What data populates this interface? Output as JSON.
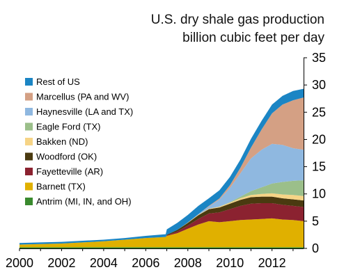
{
  "chart_data": {
    "type": "area",
    "stacked": true,
    "title": "U.S. dry shale gas production",
    "subtitle": "billion cubic feet per day",
    "xlabel": "",
    "ylabel": "",
    "xlim": [
      2000,
      2013.5
    ],
    "ylim": [
      0,
      35
    ],
    "y_axis_side": "right",
    "x_ticks": [
      2000,
      2002,
      2004,
      2006,
      2008,
      2010,
      2012
    ],
    "y_ticks": [
      0,
      5,
      10,
      15,
      20,
      25,
      30,
      35
    ],
    "grid": false,
    "legend_position": "left",
    "x": [
      2000,
      2001,
      2002,
      2003,
      2004,
      2005,
      2006,
      2006.95,
      2007,
      2007.5,
      2008,
      2008.5,
      2009,
      2009.5,
      2010,
      2010.5,
      2011,
      2011.5,
      2012,
      2012.5,
      2013,
      2013.5
    ],
    "series": [
      {
        "name": "Antrim (MI, IN, and OH)",
        "color": "#3a8a2e",
        "values": [
          0.2,
          0.2,
          0.2,
          0.2,
          0.2,
          0.2,
          0.2,
          0.2,
          0.2,
          0.2,
          0.2,
          0.2,
          0.2,
          0.2,
          0.2,
          0.2,
          0.2,
          0.2,
          0.2,
          0.2,
          0.2,
          0.2
        ]
      },
      {
        "name": "Barnett (TX)",
        "color": "#e0b000",
        "values": [
          0.5,
          0.6,
          0.7,
          0.9,
          1.1,
          1.4,
          1.7,
          1.9,
          2.1,
          2.6,
          3.4,
          4.2,
          4.8,
          4.6,
          4.8,
          5.0,
          5.1,
          5.2,
          5.3,
          5.1,
          5.0,
          4.8
        ]
      },
      {
        "name": "Fayetteville (AR)",
        "color": "#8b2230",
        "values": [
          0,
          0,
          0,
          0,
          0,
          0,
          0,
          0,
          0.1,
          0.3,
          0.6,
          1.0,
          1.4,
          1.8,
          2.2,
          2.6,
          2.9,
          2.9,
          2.8,
          2.7,
          2.6,
          2.6
        ]
      },
      {
        "name": "Woodford (OK)",
        "color": "#4a3a10",
        "values": [
          0,
          0,
          0,
          0,
          0,
          0,
          0,
          0,
          0.1,
          0.3,
          0.5,
          0.7,
          0.8,
          0.9,
          1.0,
          1.1,
          1.2,
          1.2,
          1.2,
          1.2,
          1.2,
          1.2
        ]
      },
      {
        "name": "Bakken (ND)",
        "color": "#f6d486",
        "values": [
          0,
          0,
          0,
          0,
          0,
          0,
          0,
          0,
          0,
          0,
          0.05,
          0.1,
          0.1,
          0.15,
          0.2,
          0.3,
          0.4,
          0.5,
          0.6,
          0.7,
          0.8,
          0.8
        ]
      },
      {
        "name": "Eagle Ford (TX)",
        "color": "#9bbf8a",
        "values": [
          0,
          0,
          0,
          0,
          0,
          0,
          0,
          0,
          0,
          0,
          0,
          0,
          0,
          0.02,
          0.1,
          0.3,
          0.7,
          1.2,
          1.8,
          2.3,
          2.6,
          2.9
        ]
      },
      {
        "name": "Haynesville (LA and TX)",
        "color": "#8fb8e0",
        "values": [
          0,
          0,
          0,
          0,
          0,
          0,
          0,
          0,
          0,
          0,
          0,
          0.1,
          0.4,
          1.3,
          2.6,
          4.3,
          6.0,
          6.9,
          7.3,
          6.8,
          6.0,
          5.6
        ]
      },
      {
        "name": "Marcellus (PA and WV)",
        "color": "#d4a084",
        "values": [
          0,
          0,
          0,
          0,
          0,
          0,
          0,
          0,
          0,
          0,
          0,
          0,
          0.1,
          0.2,
          0.5,
          1.0,
          2.0,
          3.7,
          5.6,
          7.4,
          8.8,
          9.6
        ]
      },
      {
        "name": "Rest of US",
        "color": "#1b85c4",
        "values": [
          0.3,
          0.3,
          0.3,
          0.3,
          0.3,
          0.3,
          0.4,
          0.5,
          1.0,
          1.3,
          1.4,
          1.5,
          1.4,
          1.5,
          1.5,
          1.5,
          1.6,
          1.6,
          1.6,
          1.6,
          1.7,
          1.6
        ]
      }
    ]
  }
}
